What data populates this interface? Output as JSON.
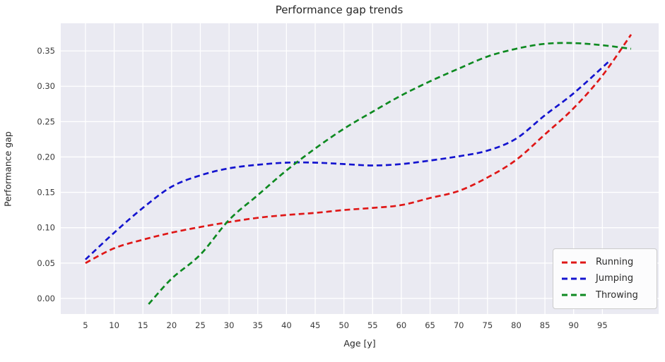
{
  "chart_data": {
    "type": "line",
    "title": "Performance gap trends",
    "xlabel": "Age [y]",
    "ylabel": "Performance gap",
    "xlim": [
      0.7,
      104.8
    ],
    "ylim": [
      -0.022,
      0.389
    ],
    "xticks": [
      5,
      10,
      15,
      20,
      25,
      30,
      35,
      40,
      45,
      50,
      55,
      60,
      65,
      70,
      75,
      80,
      85,
      90,
      95
    ],
    "yticks": [
      0.0,
      0.05,
      0.1,
      0.15,
      0.2,
      0.25,
      0.3,
      0.35
    ],
    "grid": true,
    "line_style": "dashed",
    "legend_position": "lower right",
    "series": [
      {
        "name": "Running",
        "color": "#df1717",
        "x": [
          5,
          10,
          15,
          20,
          25,
          30,
          35,
          40,
          45,
          50,
          55,
          60,
          65,
          70,
          75,
          80,
          85,
          90,
          95,
          100
        ],
        "y": [
          0.05,
          0.071,
          0.083,
          0.093,
          0.101,
          0.108,
          0.114,
          0.118,
          0.121,
          0.125,
          0.128,
          0.132,
          0.142,
          0.152,
          0.171,
          0.196,
          0.232,
          0.269,
          0.315,
          0.373
        ]
      },
      {
        "name": "Jumping",
        "color": "#1414cf",
        "x": [
          5,
          10,
          15,
          20,
          25,
          30,
          35,
          40,
          45,
          50,
          55,
          60,
          65,
          70,
          75,
          80,
          85,
          90,
          96
        ],
        "y": [
          0.055,
          0.093,
          0.128,
          0.158,
          0.174,
          0.184,
          0.189,
          0.192,
          0.192,
          0.19,
          0.188,
          0.19,
          0.195,
          0.201,
          0.209,
          0.226,
          0.259,
          0.29,
          0.334
        ]
      },
      {
        "name": "Throwing",
        "color": "#0e8a21",
        "x": [
          16,
          20,
          25,
          30,
          35,
          40,
          45,
          50,
          55,
          60,
          65,
          70,
          75,
          80,
          85,
          90,
          95,
          100
        ],
        "y": [
          -0.008,
          0.028,
          0.062,
          0.111,
          0.146,
          0.181,
          0.212,
          0.24,
          0.264,
          0.287,
          0.307,
          0.325,
          0.342,
          0.353,
          0.36,
          0.361,
          0.358,
          0.353
        ]
      }
    ],
    "style": {
      "figure_background": "#ffffff",
      "plot_background": "#eaeaf2",
      "grid_color": "#ffffff",
      "title_color": "#262626",
      "tick_label_color": "#3a3a3a",
      "legend_background": "#fcfcfd",
      "legend_border": "#cccccc"
    }
  }
}
